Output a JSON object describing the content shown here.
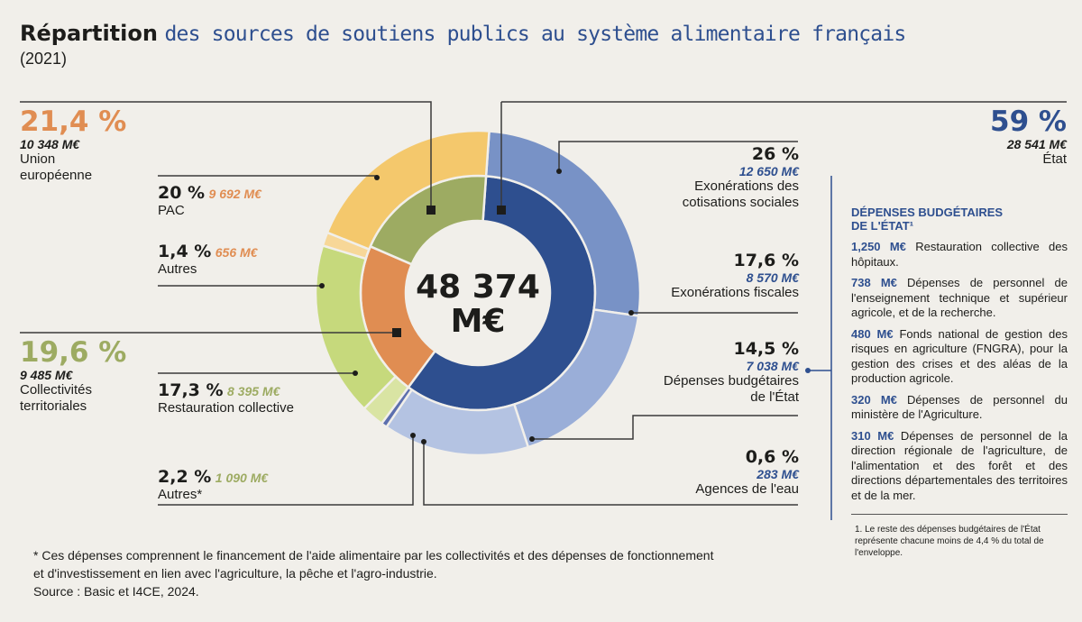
{
  "title": {
    "bold": "Répartition",
    "rest": "des sources de soutiens publics au système alimentaire français",
    "year": "(2021)"
  },
  "colors": {
    "ue_outer": "#f4c86c",
    "ue_inner": "#e08d52",
    "ue_autres": "#f7d798",
    "ct_outer": "#c6d97c",
    "ct_inner": "#9dab62",
    "ct_autres": "#d9e4a3",
    "etat_inner": "#2e4f8f",
    "etat_exo_soc": "#7892c6",
    "etat_exo_fisc": "#9aaed8",
    "etat_budget": "#b4c3e2",
    "etat_eau": "#5c6fae",
    "orange_text": "#e08d52",
    "green_text": "#9dab62",
    "blue_text": "#2e4f8f"
  },
  "chart_data": {
    "type": "pie",
    "subtype": "two-level donut",
    "title": "Répartition des sources de soutiens publics au système alimentaire français (2021)",
    "total": {
      "value": 48374,
      "label": "48 374 M€",
      "unit": "M€"
    },
    "inner": [
      {
        "name": "État",
        "percent": 59,
        "value": 28541,
        "color_key": "etat_inner"
      },
      {
        "name": "Union européenne",
        "percent": 21.4,
        "value": 10348,
        "color_key": "ue_inner"
      },
      {
        "name": "Collectivités territoriales",
        "percent": 19.6,
        "value": 9485,
        "color_key": "ct_inner"
      }
    ],
    "outer": [
      {
        "name": "Exonérations des cotisations sociales",
        "group": "État",
        "percent": 26,
        "value": 12650,
        "color_key": "etat_exo_soc"
      },
      {
        "name": "Exonérations fiscales",
        "group": "État",
        "percent": 17.6,
        "value": 8570,
        "color_key": "etat_exo_fisc"
      },
      {
        "name": "Dépenses budgétaires de l'État",
        "group": "État",
        "percent": 14.5,
        "value": 7038,
        "color_key": "etat_budget"
      },
      {
        "name": "Agences de l'eau",
        "group": "État",
        "percent": 0.6,
        "value": 283,
        "color_key": "etat_eau"
      },
      {
        "name": "Autres*",
        "group": "Collectivités territoriales",
        "percent": 2.2,
        "value": 1090,
        "color_key": "ct_autres"
      },
      {
        "name": "Restauration collective",
        "group": "Collectivités territoriales",
        "percent": 17.3,
        "value": 8395,
        "color_key": "ct_outer"
      },
      {
        "name": "Autres",
        "group": "Union européenne",
        "percent": 1.4,
        "value": 656,
        "color_key": "ue_autres"
      },
      {
        "name": "PAC",
        "group": "Union européenne",
        "percent": 20,
        "value": 9692,
        "color_key": "ue_outer"
      }
    ]
  },
  "groups": {
    "ue": {
      "pct": "21,4 %",
      "money": "10 348 M€",
      "label1": "Union",
      "label2": "européenne"
    },
    "ct": {
      "pct": "19,6 %",
      "money": "9 485 M€",
      "label1": "Collectivités",
      "label2": "territoriales"
    },
    "etat": {
      "pct": "59 %",
      "money": "28 541 M€",
      "label": "État"
    }
  },
  "labels": {
    "pac": {
      "pct": "20 %",
      "money": "9 692 M€",
      "label": "PAC"
    },
    "ue_autres": {
      "pct": "1,4 %",
      "money": "656 M€",
      "label": "Autres"
    },
    "resto": {
      "pct": "17,3 %",
      "money": "8 395 M€",
      "label": "Restauration collective"
    },
    "ct_autres": {
      "pct": "2,2 %",
      "money": "1 090 M€",
      "label": "Autres*"
    },
    "exo_soc": {
      "pct": "26 %",
      "money": "12 650 M€",
      "label1": "Exonérations des",
      "label2": "cotisations sociales"
    },
    "exo_fisc": {
      "pct": "17,6 %",
      "money": "8 570 M€",
      "label": "Exonérations fiscales"
    },
    "budget": {
      "pct": "14,5 %",
      "money": "7 038 M€",
      "label1": "Dépenses budgétaires",
      "label2": "de l'État"
    },
    "eau": {
      "pct": "0,6 %",
      "money": "283 M€",
      "label": "Agences de l'eau"
    }
  },
  "center": {
    "line1": "48 374",
    "line2": "M€"
  },
  "side_panel": {
    "heading1": "DÉPENSES BUDGÉTAIRES",
    "heading2": "DE L'ÉTAT¹",
    "items": [
      {
        "amount": "1,250 M€",
        "text": " Restauration collective des hôpitaux."
      },
      {
        "amount": "738 M€",
        "text": " Dépenses de personnel de l'enseignement technique et supérieur agricole, et de la recherche."
      },
      {
        "amount": "480 M€",
        "text": " Fonds national de gestion des risques en agriculture (FNGRA), pour la gestion des crises et des aléas de la production agricole."
      },
      {
        "amount": "320 M€",
        "text": " Dépenses de personnel du ministère de l'Agriculture."
      },
      {
        "amount": "310 M€",
        "text": " Dépenses de personnel de la direction régionale de l'agriculture, de l'alimentation et des forêt et des directions départementales des territoires et de la mer."
      }
    ],
    "note": "1. Le reste des dépenses budgétaires de l'État représente chacune moins de 4,4 % du total de l'enveloppe."
  },
  "footnote": {
    "line1": "* Ces dépenses comprennent le financement de l'aide alimentaire par les collectivités et des dépenses de fonctionnement",
    "line2": "et d'investissement en lien avec l'agriculture, la pêche et l'agro-industrie.",
    "source": "Source : Basic et I4CE, 2024."
  }
}
